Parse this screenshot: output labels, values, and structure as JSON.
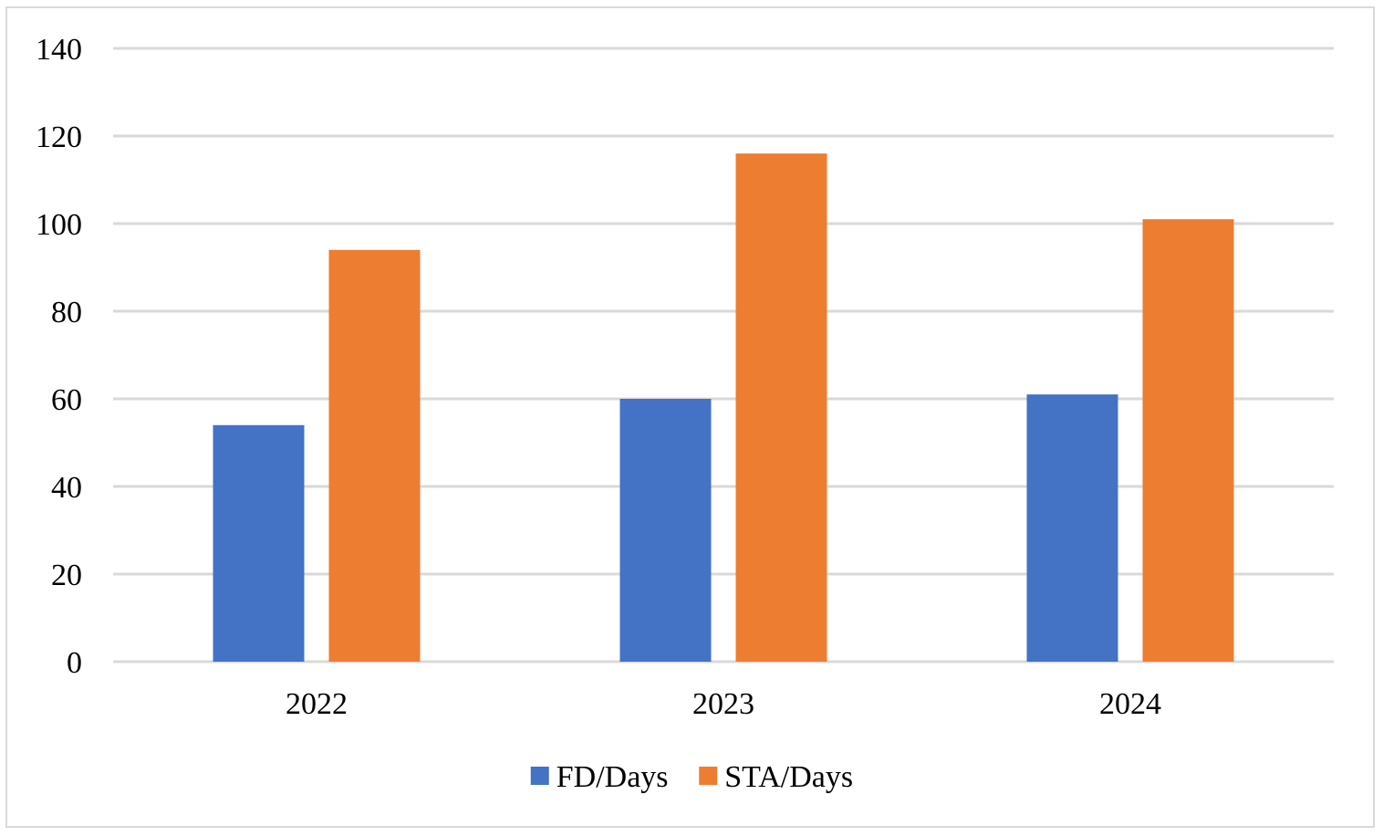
{
  "chart_data": {
    "type": "bar",
    "title": "",
    "xlabel": "",
    "ylabel": "",
    "categories": [
      "2022",
      "2023",
      "2024"
    ],
    "series": [
      {
        "name": "FD/Days",
        "color": "#4472c4",
        "values": [
          54,
          60,
          61
        ]
      },
      {
        "name": "STA/Days",
        "color": "#ed7d31",
        "values": [
          94,
          116,
          101
        ]
      }
    ],
    "ylim": [
      0,
      140
    ],
    "yticks": [
      0,
      20,
      40,
      60,
      80,
      100,
      120,
      140
    ],
    "grid": true,
    "gridline_color": "#d9d9d9",
    "legend_position": "bottom"
  }
}
